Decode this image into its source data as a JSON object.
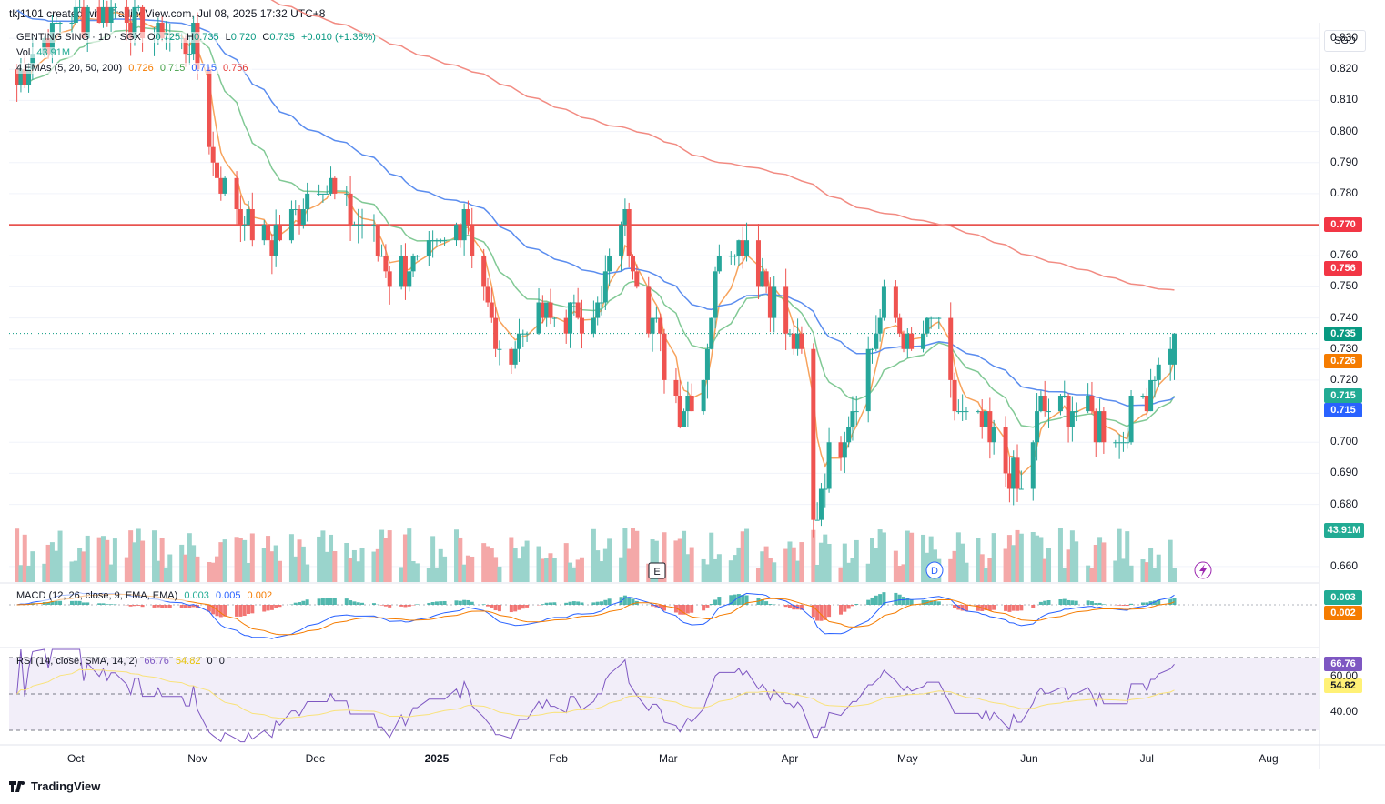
{
  "header": {
    "created_by": "tkj1101 created with TradingView.com, Jul 08, 2025 17:32 UTC+8"
  },
  "footer": {
    "brand": "TradingView"
  },
  "legend": {
    "symbol": "GENTING SING · 1D · SGX",
    "o_label": "O",
    "o": "0.725",
    "h_label": "H",
    "h": "0.735",
    "l_label": "L",
    "l": "0.720",
    "c_label": "C",
    "c": "0.735",
    "change": "+0.010 (+1.38%)",
    "vol_label": "Vol",
    "vol": "43.91M",
    "ema_label": "4 EMAs (5, 20, 50, 200)",
    "ema5": "0.726",
    "ema20": "0.715",
    "ema50": "0.715",
    "ema200": "0.756",
    "macd_label": "MACD (12, 26, close, 9, EMA, EMA)",
    "macd_hist": "0.003",
    "macd_line": "0.005",
    "macd_signal": "0.002",
    "rsi_label": "RSI (14, close, SMA, 14, 2)",
    "rsi": "66.76",
    "rsi_ma": "54.82",
    "rsi_extra1": "0",
    "rsi_extra2": "0"
  },
  "price_axis": {
    "currency": "SGD",
    "ticks": [
      "0.830",
      "0.820",
      "0.810",
      "0.800",
      "0.790",
      "0.780",
      "0.760",
      "0.750",
      "0.740",
      "0.730",
      "0.720",
      "0.700",
      "0.690",
      "0.680",
      "0.660"
    ]
  },
  "price_tags": [
    {
      "label": "0.770",
      "color": "#f23645",
      "value": 0.77
    },
    {
      "label": "0.756",
      "color": "#f23645",
      "value": 0.756
    },
    {
      "label": "0.735",
      "color": "#089981",
      "value": 0.735
    },
    {
      "label": "0.726",
      "color": "#f57c00",
      "value": 0.726
    },
    {
      "label": "0.715",
      "color": "#22ab94",
      "value": 0.715
    },
    {
      "label": "0.715",
      "color": "#2962ff",
      "value": 0.715
    },
    {
      "label": "43.91M",
      "color": "#22ab94",
      "value": null
    }
  ],
  "macd_tags": [
    {
      "label": "0.003",
      "color": "#22ab94"
    },
    {
      "label": "0.002",
      "color": "#f57c00"
    }
  ],
  "rsi_axis": {
    "ticks": [
      "60.00",
      "40.00"
    ],
    "tags": [
      {
        "label": "66.76",
        "color": "#7e57c2"
      },
      {
        "label": "54.82",
        "color": "#fff176"
      }
    ]
  },
  "time_axis": {
    "labels": [
      "Oct",
      "Nov",
      "Dec",
      "2025",
      "Feb",
      "Mar",
      "Apr",
      "May",
      "Jun",
      "Jul",
      "Aug"
    ]
  },
  "markers": {
    "e_marker": "E",
    "d_marker": "D"
  },
  "colors": {
    "up": "#26a69a",
    "down": "#ef5350",
    "ema5": "#f7a35c",
    "ema20": "#81c995",
    "ema50": "#5b8def",
    "ema200": "#f28b82",
    "resistance": "#e53935",
    "macd": "#2962ff",
    "signal": "#f57c00",
    "rsi": "#7e57c2",
    "rsi_ma": "#f9e27a"
  },
  "chart_data": {
    "type": "candlestick",
    "symbol": "GENTING SING",
    "interval": "1D",
    "exchange": "SGX",
    "ylim": [
      0.655,
      0.835
    ],
    "horizontal_line": 0.77,
    "ohlc_waypoints": [
      {
        "date": "2024-09-16",
        "close": 0.815
      },
      {
        "date": "2024-09-20",
        "close": 0.825
      },
      {
        "date": "2024-09-27",
        "close": 0.835
      },
      {
        "date": "2024-10-10",
        "close": 0.84
      },
      {
        "date": "2024-10-25",
        "close": 0.83
      },
      {
        "date": "2024-10-31",
        "close": 0.83
      },
      {
        "date": "2024-11-05",
        "close": 0.79
      },
      {
        "date": "2024-11-11",
        "close": 0.775
      },
      {
        "date": "2024-11-20",
        "close": 0.765
      },
      {
        "date": "2024-12-02",
        "close": 0.785
      },
      {
        "date": "2024-12-06",
        "close": 0.78
      },
      {
        "date": "2024-12-13",
        "close": 0.77
      },
      {
        "date": "2024-12-20",
        "close": 0.755
      },
      {
        "date": "2024-12-31",
        "close": 0.76
      },
      {
        "date": "2025-01-08",
        "close": 0.775
      },
      {
        "date": "2025-01-14",
        "close": 0.745
      },
      {
        "date": "2025-01-17",
        "close": 0.725
      },
      {
        "date": "2025-01-24",
        "close": 0.74
      },
      {
        "date": "2025-02-04",
        "close": 0.74
      },
      {
        "date": "2025-02-12",
        "close": 0.745
      },
      {
        "date": "2025-02-17",
        "close": 0.775
      },
      {
        "date": "2025-02-21",
        "close": 0.755
      },
      {
        "date": "2025-02-26",
        "close": 0.735
      },
      {
        "date": "2025-03-04",
        "close": 0.71
      },
      {
        "date": "2025-03-10",
        "close": 0.72
      },
      {
        "date": "2025-03-14",
        "close": 0.765
      },
      {
        "date": "2025-03-21",
        "close": 0.765
      },
      {
        "date": "2025-03-28",
        "close": 0.745
      },
      {
        "date": "2025-04-04",
        "close": 0.725
      },
      {
        "date": "2025-04-07",
        "close": 0.675
      },
      {
        "date": "2025-04-11",
        "close": 0.695
      },
      {
        "date": "2025-04-17",
        "close": 0.71
      },
      {
        "date": "2025-04-25",
        "close": 0.745
      },
      {
        "date": "2025-05-02",
        "close": 0.73
      },
      {
        "date": "2025-05-08",
        "close": 0.74
      },
      {
        "date": "2025-05-13",
        "close": 0.71
      },
      {
        "date": "2025-05-20",
        "close": 0.705
      },
      {
        "date": "2025-05-27",
        "close": 0.69
      },
      {
        "date": "2025-05-30",
        "close": 0.685
      },
      {
        "date": "2025-06-04",
        "close": 0.71
      },
      {
        "date": "2025-06-12",
        "close": 0.71
      },
      {
        "date": "2025-06-20",
        "close": 0.705
      },
      {
        "date": "2025-06-24",
        "close": 0.7
      },
      {
        "date": "2025-06-30",
        "close": 0.715
      },
      {
        "date": "2025-07-04",
        "close": 0.725
      },
      {
        "date": "2025-07-08",
        "close": 0.735
      }
    ],
    "last_bar": {
      "date": "2025-07-08",
      "open": 0.725,
      "high": 0.735,
      "low": 0.72,
      "close": 0.735,
      "volume": "43.91M"
    },
    "emas": {
      "ema5": 0.726,
      "ema20": 0.715,
      "ema50": 0.715,
      "ema200": 0.756
    },
    "macd": {
      "histogram": 0.003,
      "macd": 0.005,
      "signal": 0.002
    },
    "rsi": {
      "value": 66.76,
      "ma": 54.82
    },
    "x_labels": [
      "Oct",
      "Nov",
      "Dec",
      "2025",
      "Feb",
      "Mar",
      "Apr",
      "May",
      "Jun",
      "Jul",
      "Aug"
    ]
  }
}
